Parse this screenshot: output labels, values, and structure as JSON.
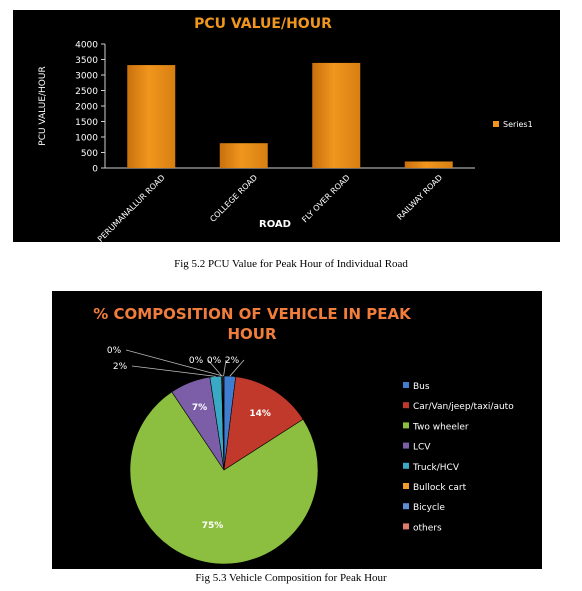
{
  "chart_data": [
    {
      "type": "bar",
      "title": "PCU VALUE/HOUR",
      "xlabel": "ROAD",
      "ylabel": "PCU VALUE/HOUR",
      "categories": [
        "PERUMANALLUR ROAD",
        "COLLEGE ROAD",
        "FLY OVER ROAD",
        "RAILWAY ROAD"
      ],
      "series": [
        {
          "name": "Series1",
          "values": [
            3320,
            800,
            3390,
            210
          ]
        }
      ],
      "ylim": [
        0,
        4000
      ],
      "yticks": [
        "0",
        "500",
        "1000",
        "1500",
        "2000",
        "2500",
        "3000",
        "3500",
        "4000"
      ],
      "grid": false,
      "legend": "right",
      "bar_color": "#f0961e"
    },
    {
      "type": "pie",
      "title": "% COMPOSITION OF VEHICLE IN PEAK HOUR",
      "categories": [
        "Bus",
        "Car/Van/jeep/taxi/auto",
        "Two wheeler",
        "LCV",
        "Truck/HCV",
        "Bullock cart",
        "Bicycle",
        "others"
      ],
      "values": [
        2,
        14,
        75,
        7,
        2,
        0,
        0,
        0
      ],
      "data_labels": [
        "2%",
        "14%",
        "75%",
        "7%",
        "2%",
        "0%",
        "0%",
        "0%"
      ],
      "colors": [
        "#3f7dd0",
        "#c0392b",
        "#8cbf3f",
        "#7b5ea7",
        "#3aa9c4",
        "#f39c2a",
        "#5b8fd6",
        "#e07a6a"
      ],
      "legend": "right",
      "title_color": "#f07d3c"
    }
  ],
  "captions": {
    "fig1": "Fig 5.2 PCU Value for Peak Hour of Individual Road",
    "fig2": "Fig 5.3 Vehicle Composition for Peak Hour"
  }
}
